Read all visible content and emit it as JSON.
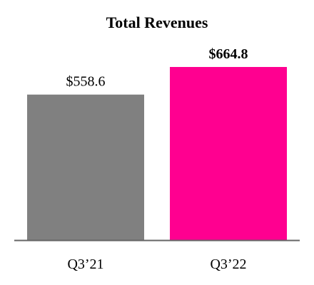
{
  "chart_data": {
    "type": "bar",
    "title": "Total Revenues",
    "categories": [
      "Q3’21",
      "Q3’22"
    ],
    "values": [
      558.6,
      664.8
    ],
    "value_labels": [
      "$558.6",
      "$664.8"
    ],
    "colors": [
      "#808080",
      "#ff0090"
    ]
  }
}
